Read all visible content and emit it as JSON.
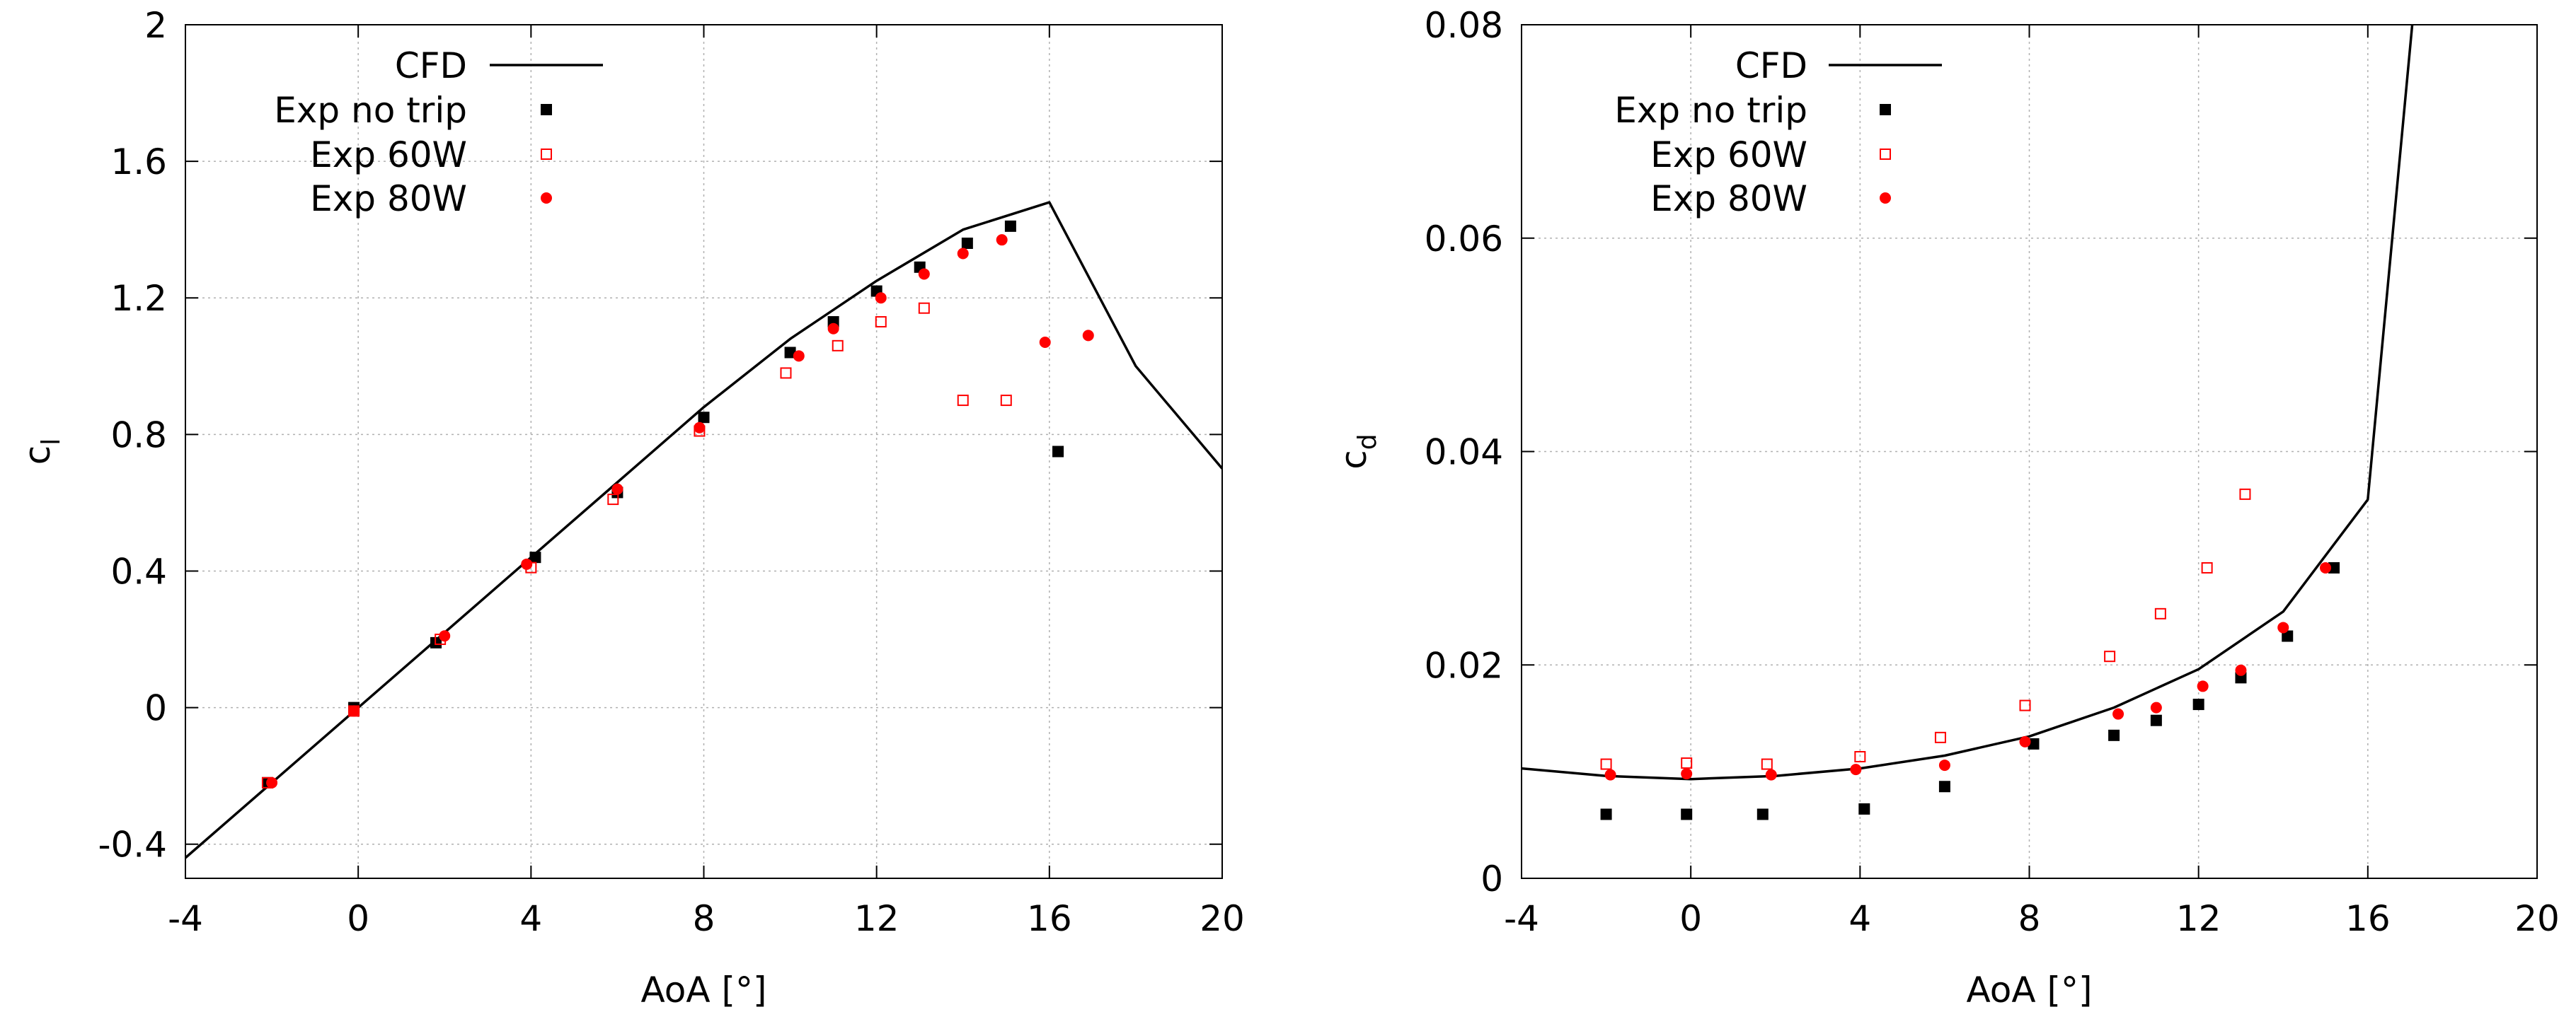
{
  "colors": {
    "cfd": "#000000",
    "exp_no_trip": "#000000",
    "exp_60w": "#ff0000",
    "exp_80w": "#ff0000",
    "grid": "#b0b0b0",
    "frame": "#000000"
  },
  "chart_data": [
    {
      "type": "scatter",
      "title": "",
      "xlabel": "AoA [°]",
      "ylabel_main": "c",
      "ylabel_sub": "l",
      "xlim": [
        -4,
        20
      ],
      "ylim": [
        -0.5,
        2
      ],
      "xticks": [
        -4,
        0,
        4,
        8,
        12,
        16,
        20
      ],
      "xtick_labels": [
        "-4",
        "0",
        "4",
        "8",
        "12",
        "16",
        "20"
      ],
      "yticks": [
        -0.4,
        0,
        0.4,
        0.8,
        1.2,
        1.6,
        2
      ],
      "ytick_labels": [
        "-0.4",
        "0",
        "0.4",
        "0.8",
        "1.2",
        "1.6",
        "2"
      ],
      "grid": true,
      "legend_position": "top-left",
      "series": [
        {
          "name": "CFD",
          "kind": "line",
          "color_key": "cfd",
          "x": [
            -4,
            -2,
            0,
            2,
            4,
            6,
            8,
            10,
            12,
            14,
            16,
            18,
            20
          ],
          "y": [
            -0.44,
            -0.22,
            0.0,
            0.22,
            0.44,
            0.66,
            0.88,
            1.08,
            1.25,
            1.4,
            1.48,
            1.0,
            0.7
          ]
        },
        {
          "name": "Exp no trip",
          "kind": "square",
          "color_key": "exp_no_trip",
          "x": [
            -2.1,
            -0.1,
            1.8,
            4.1,
            6.0,
            8.0,
            10.0,
            11.0,
            12.0,
            13.0,
            14.1,
            15.1,
            16.2
          ],
          "y": [
            -0.22,
            0.0,
            0.19,
            0.44,
            0.63,
            0.85,
            1.04,
            1.13,
            1.22,
            1.29,
            1.36,
            1.41,
            0.75
          ]
        },
        {
          "name": "Exp 60W",
          "kind": "open-square",
          "color_key": "exp_60w",
          "x": [
            -2.1,
            -0.1,
            1.9,
            4.0,
            5.9,
            7.9,
            9.9,
            11.1,
            12.1,
            13.1,
            14.0,
            15.0
          ],
          "y": [
            -0.22,
            -0.01,
            0.2,
            0.41,
            0.61,
            0.81,
            0.98,
            1.06,
            1.13,
            1.17,
            0.9,
            0.9
          ]
        },
        {
          "name": "Exp 80W",
          "kind": "circle",
          "color_key": "exp_80w",
          "x": [
            -2.0,
            -0.1,
            2.0,
            3.9,
            6.0,
            7.9,
            10.2,
            11.0,
            12.1,
            13.1,
            14.0,
            14.9,
            15.9,
            16.9
          ],
          "y": [
            -0.22,
            -0.01,
            0.21,
            0.42,
            0.64,
            0.82,
            1.03,
            1.11,
            1.2,
            1.27,
            1.33,
            1.37,
            1.07,
            1.09
          ]
        }
      ]
    },
    {
      "type": "scatter",
      "title": "",
      "xlabel": "AoA [°]",
      "ylabel_main": "c",
      "ylabel_sub": "d",
      "xlim": [
        -4,
        20
      ],
      "ylim": [
        0,
        0.08
      ],
      "xticks": [
        -4,
        0,
        4,
        8,
        12,
        16,
        20
      ],
      "xtick_labels": [
        "-4",
        "0",
        "4",
        "8",
        "12",
        "16",
        "20"
      ],
      "yticks": [
        0,
        0.02,
        0.04,
        0.06,
        0.08
      ],
      "ytick_labels": [
        "0",
        "0.02",
        "0.04",
        "0.06",
        "0.08"
      ],
      "grid": true,
      "legend_position": "top-left",
      "series": [
        {
          "name": "CFD",
          "kind": "line",
          "color_key": "cfd",
          "x": [
            -4,
            -2,
            0,
            2,
            4,
            6,
            8,
            10,
            12,
            14,
            16,
            17.05
          ],
          "y": [
            0.0103,
            0.0096,
            0.0093,
            0.0096,
            0.0103,
            0.0115,
            0.0133,
            0.016,
            0.0196,
            0.025,
            0.0355,
            0.08
          ]
        },
        {
          "name": "Exp no trip",
          "kind": "square",
          "color_key": "exp_no_trip",
          "x": [
            -2.0,
            -0.1,
            1.7,
            4.1,
            6.0,
            8.1,
            10.0,
            11.0,
            12.0,
            13.0,
            14.1,
            15.2
          ],
          "y": [
            0.006,
            0.006,
            0.006,
            0.0065,
            0.0086,
            0.0126,
            0.0134,
            0.0148,
            0.0163,
            0.0188,
            0.0227,
            0.0291
          ]
        },
        {
          "name": "Exp 60W",
          "kind": "open-square",
          "color_key": "exp_60w",
          "x": [
            -2.0,
            -0.1,
            1.8,
            4.0,
            5.9,
            7.9,
            9.9,
            11.1,
            12.2,
            13.1
          ],
          "y": [
            0.0107,
            0.0108,
            0.0107,
            0.0114,
            0.0132,
            0.0162,
            0.0208,
            0.0248,
            0.0291,
            0.036
          ]
        },
        {
          "name": "Exp 80W",
          "kind": "circle",
          "color_key": "exp_80w",
          "x": [
            -1.9,
            -0.1,
            1.9,
            3.9,
            6.0,
            7.9,
            10.1,
            11.0,
            12.1,
            13.0,
            14.0,
            15.0
          ],
          "y": [
            0.0097,
            0.0098,
            0.0097,
            0.0102,
            0.0106,
            0.0128,
            0.0154,
            0.016,
            0.018,
            0.0195,
            0.0235,
            0.0291
          ]
        }
      ]
    }
  ]
}
